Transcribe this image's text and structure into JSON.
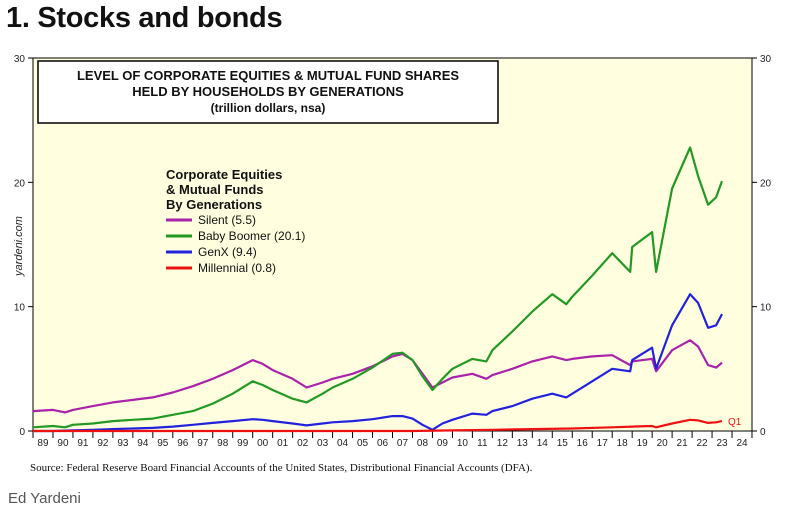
{
  "heading": "1. Stocks and bonds",
  "source": "Source: Federal Reserve Board Financial Accounts of the United States, Distributional Financial Accounts (DFA).",
  "credit": "Ed Yardeni",
  "chart_data": {
    "type": "line",
    "title_lines": [
      "LEVEL OF CORPORATE EQUITIES & MUTUAL FUND SHARES",
      "HELD BY HOUSEHOLDS BY GENERATIONS"
    ],
    "subtitle": "(trillion dollars, nsa)",
    "watermark": "yardeni.com",
    "legend_title": [
      "Corporate Equities",
      "& Mutual Funds",
      "By Generations"
    ],
    "legend_position": "upper-left",
    "annotation": "Q1",
    "ylim": [
      0,
      30
    ],
    "y_ticks": [
      "0",
      "10",
      "20",
      "30"
    ],
    "xlim": [
      1989,
      2025
    ],
    "x_tick_labels": [
      "89",
      "90",
      "91",
      "92",
      "93",
      "94",
      "95",
      "96",
      "97",
      "98",
      "99",
      "00",
      "01",
      "02",
      "03",
      "04",
      "05",
      "06",
      "07",
      "08",
      "09",
      "10",
      "11",
      "12",
      "13",
      "14",
      "15",
      "16",
      "17",
      "18",
      "19",
      "20",
      "21",
      "22",
      "23",
      "24"
    ],
    "grid": false,
    "background_color": "#ffffe0",
    "series": [
      {
        "name": "Silent",
        "legend_label": "Silent (5.5)",
        "color": "#aa22aa",
        "points": [
          [
            1989.0,
            1.6
          ],
          [
            1990.0,
            1.7
          ],
          [
            1990.6,
            1.5
          ],
          [
            1991.0,
            1.7
          ],
          [
            1992.0,
            2.0
          ],
          [
            1993.0,
            2.3
          ],
          [
            1994.0,
            2.5
          ],
          [
            1995.0,
            2.7
          ],
          [
            1996.0,
            3.1
          ],
          [
            1997.0,
            3.6
          ],
          [
            1998.0,
            4.2
          ],
          [
            1999.0,
            4.9
          ],
          [
            2000.0,
            5.7
          ],
          [
            2000.5,
            5.4
          ],
          [
            2001.0,
            4.9
          ],
          [
            2002.0,
            4.2
          ],
          [
            2002.7,
            3.5
          ],
          [
            2003.5,
            3.9
          ],
          [
            2004.0,
            4.2
          ],
          [
            2005.0,
            4.6
          ],
          [
            2006.0,
            5.2
          ],
          [
            2007.0,
            6.0
          ],
          [
            2007.5,
            6.2
          ],
          [
            2008.0,
            5.7
          ],
          [
            2008.5,
            4.6
          ],
          [
            2009.0,
            3.5
          ],
          [
            2009.5,
            3.9
          ],
          [
            2010.0,
            4.3
          ],
          [
            2011.0,
            4.6
          ],
          [
            2011.7,
            4.2
          ],
          [
            2012.0,
            4.5
          ],
          [
            2013.0,
            5.0
          ],
          [
            2014.0,
            5.6
          ],
          [
            2015.0,
            6.0
          ],
          [
            2015.7,
            5.7
          ],
          [
            2016.0,
            5.8
          ],
          [
            2017.0,
            6.0
          ],
          [
            2018.0,
            6.1
          ],
          [
            2018.9,
            5.3
          ],
          [
            2019.0,
            5.6
          ],
          [
            2020.0,
            5.8
          ],
          [
            2020.2,
            4.8
          ],
          [
            2021.0,
            6.5
          ],
          [
            2021.9,
            7.3
          ],
          [
            2022.3,
            6.8
          ],
          [
            2022.8,
            5.3
          ],
          [
            2023.2,
            5.1
          ],
          [
            2023.5,
            5.5
          ]
        ]
      },
      {
        "name": "Baby Boomer",
        "legend_label": "Baby Boomer (20.1)",
        "color": "#229922",
        "points": [
          [
            1989.0,
            0.3
          ],
          [
            1990.0,
            0.4
          ],
          [
            1990.6,
            0.3
          ],
          [
            1991.0,
            0.5
          ],
          [
            1992.0,
            0.6
          ],
          [
            1993.0,
            0.8
          ],
          [
            1994.0,
            0.9
          ],
          [
            1995.0,
            1.0
          ],
          [
            1996.0,
            1.3
          ],
          [
            1997.0,
            1.6
          ],
          [
            1998.0,
            2.2
          ],
          [
            1999.0,
            3.0
          ],
          [
            2000.0,
            4.0
          ],
          [
            2000.5,
            3.7
          ],
          [
            2001.0,
            3.3
          ],
          [
            2002.0,
            2.6
          ],
          [
            2002.7,
            2.3
          ],
          [
            2003.5,
            3.0
          ],
          [
            2004.0,
            3.5
          ],
          [
            2005.0,
            4.2
          ],
          [
            2006.0,
            5.1
          ],
          [
            2007.0,
            6.2
          ],
          [
            2007.5,
            6.3
          ],
          [
            2008.0,
            5.7
          ],
          [
            2008.5,
            4.4
          ],
          [
            2009.0,
            3.3
          ],
          [
            2009.5,
            4.2
          ],
          [
            2010.0,
            5.0
          ],
          [
            2011.0,
            5.8
          ],
          [
            2011.7,
            5.6
          ],
          [
            2012.0,
            6.5
          ],
          [
            2013.0,
            8.0
          ],
          [
            2014.0,
            9.6
          ],
          [
            2015.0,
            11.0
          ],
          [
            2015.7,
            10.2
          ],
          [
            2016.0,
            10.8
          ],
          [
            2017.0,
            12.5
          ],
          [
            2018.0,
            14.3
          ],
          [
            2018.9,
            12.8
          ],
          [
            2019.0,
            14.8
          ],
          [
            2020.0,
            16.0
          ],
          [
            2020.2,
            12.8
          ],
          [
            2021.0,
            19.5
          ],
          [
            2021.9,
            22.8
          ],
          [
            2022.3,
            20.5
          ],
          [
            2022.8,
            18.2
          ],
          [
            2023.2,
            18.8
          ],
          [
            2023.5,
            20.1
          ]
        ]
      },
      {
        "name": "GenX",
        "legend_label": "GenX (9.4)",
        "color": "#2222dd",
        "points": [
          [
            1989.0,
            0.0
          ],
          [
            1990.0,
            0.0
          ],
          [
            1991.0,
            0.05
          ],
          [
            1992.0,
            0.1
          ],
          [
            1993.0,
            0.15
          ],
          [
            1994.0,
            0.2
          ],
          [
            1995.0,
            0.25
          ],
          [
            1996.0,
            0.35
          ],
          [
            1997.0,
            0.5
          ],
          [
            1998.0,
            0.65
          ],
          [
            1999.0,
            0.8
          ],
          [
            2000.0,
            0.95
          ],
          [
            2000.5,
            0.9
          ],
          [
            2001.0,
            0.8
          ],
          [
            2002.0,
            0.6
          ],
          [
            2002.7,
            0.45
          ],
          [
            2003.5,
            0.6
          ],
          [
            2004.0,
            0.7
          ],
          [
            2005.0,
            0.8
          ],
          [
            2006.0,
            0.95
          ],
          [
            2007.0,
            1.2
          ],
          [
            2007.5,
            1.2
          ],
          [
            2008.0,
            1.0
          ],
          [
            2008.5,
            0.5
          ],
          [
            2009.0,
            0.1
          ],
          [
            2009.5,
            0.6
          ],
          [
            2010.0,
            0.9
          ],
          [
            2011.0,
            1.4
          ],
          [
            2011.7,
            1.3
          ],
          [
            2012.0,
            1.6
          ],
          [
            2013.0,
            2.0
          ],
          [
            2014.0,
            2.6
          ],
          [
            2015.0,
            3.0
          ],
          [
            2015.7,
            2.7
          ],
          [
            2016.0,
            3.0
          ],
          [
            2017.0,
            4.0
          ],
          [
            2018.0,
            5.0
          ],
          [
            2018.9,
            4.8
          ],
          [
            2019.0,
            5.7
          ],
          [
            2020.0,
            6.7
          ],
          [
            2020.2,
            5.0
          ],
          [
            2021.0,
            8.5
          ],
          [
            2021.9,
            11.0
          ],
          [
            2022.3,
            10.3
          ],
          [
            2022.8,
            8.3
          ],
          [
            2023.2,
            8.5
          ],
          [
            2023.5,
            9.4
          ]
        ]
      },
      {
        "name": "Millennial",
        "legend_label": "Millennial (0.8)",
        "color": "#ee1111",
        "points": [
          [
            1989.0,
            0.0
          ],
          [
            1995.0,
            0.0
          ],
          [
            2000.0,
            0.0
          ],
          [
            2005.0,
            0.0
          ],
          [
            2008.0,
            0.0
          ],
          [
            2010.0,
            0.05
          ],
          [
            2012.0,
            0.1
          ],
          [
            2014.0,
            0.15
          ],
          [
            2016.0,
            0.2
          ],
          [
            2018.0,
            0.3
          ],
          [
            2019.0,
            0.35
          ],
          [
            2020.0,
            0.4
          ],
          [
            2020.2,
            0.3
          ],
          [
            2021.0,
            0.6
          ],
          [
            2021.9,
            0.9
          ],
          [
            2022.3,
            0.85
          ],
          [
            2022.8,
            0.65
          ],
          [
            2023.2,
            0.7
          ],
          [
            2023.5,
            0.8
          ]
        ]
      }
    ]
  }
}
